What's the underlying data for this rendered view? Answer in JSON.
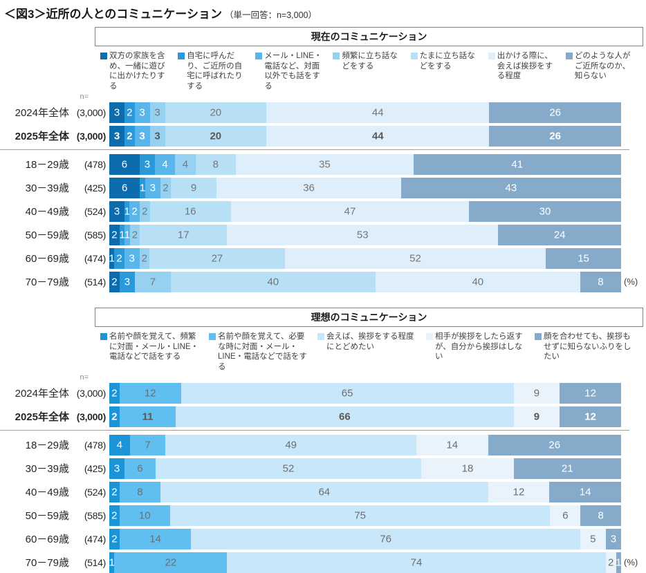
{
  "title": {
    "main": "＜図3＞近所の人とのコミュニケーション",
    "sub": "（単一回答：n=3,000）"
  },
  "n_axis_label": "n=",
  "percent_label": "(%)",
  "chart_data": [
    {
      "type": "bar",
      "stacked": true,
      "orientation": "horizontal",
      "unit": "%",
      "xlim": [
        0,
        100
      ],
      "header": "現在のコミュニケーション",
      "legend_position": "top",
      "categories": [
        "双方の家族を含め、一緒に遊びに出かけたりする",
        "自宅に呼んだり、ご近所の自宅に呼ばれたりする",
        "メール・LINE・電話など、対面以外でも話をする",
        "頻繁に立ち話などをする",
        "たまに立ち話などをする",
        "出かける際に、会えば挨拶をする程度",
        "どのような人がご近所なのか、知らない"
      ],
      "colors": [
        "#0d6cad",
        "#2999da",
        "#5ab6ea",
        "#97d1f2",
        "#b7e0f7",
        "#deeefa",
        "#86abca"
      ],
      "label_colors": [
        "#ffffff",
        "#ffffff",
        "#ffffff",
        "#767676",
        "#767676",
        "#767676",
        "#ffffff"
      ],
      "rows": [
        {
          "label": "2024年全体",
          "n": "(3,000)",
          "bold": false,
          "divider_before": false,
          "values": [
            3,
            2,
            3,
            3,
            20,
            44,
            26
          ]
        },
        {
          "label": "2025年全体",
          "n": "(3,000)",
          "bold": true,
          "divider_before": false,
          "values": [
            3,
            2,
            3,
            3,
            20,
            44,
            26
          ]
        },
        {
          "label": "18－29歳",
          "n": "(478)",
          "bold": false,
          "divider_before": true,
          "values": [
            6,
            3,
            4,
            4,
            8,
            35,
            41
          ]
        },
        {
          "label": "30－39歳",
          "n": "(425)",
          "bold": false,
          "divider_before": false,
          "values": [
            6,
            1,
            3,
            2,
            9,
            36,
            43
          ]
        },
        {
          "label": "40－49歳",
          "n": "(524)",
          "bold": false,
          "divider_before": false,
          "values": [
            3,
            1,
            2,
            2,
            16,
            47,
            30
          ]
        },
        {
          "label": "50－59歳",
          "n": "(585)",
          "bold": false,
          "divider_before": false,
          "values": [
            2,
            1,
            1,
            2,
            17,
            53,
            24
          ]
        },
        {
          "label": "60－69歳",
          "n": "(474)",
          "bold": false,
          "divider_before": false,
          "values": [
            1,
            2,
            3,
            2,
            27,
            52,
            15
          ]
        },
        {
          "label": "70－79歳",
          "n": "(514)",
          "bold": false,
          "divider_before": false,
          "values": [
            2,
            3,
            0,
            7,
            40,
            40,
            8
          ]
        }
      ]
    },
    {
      "type": "bar",
      "stacked": true,
      "orientation": "horizontal",
      "unit": "%",
      "xlim": [
        0,
        100
      ],
      "header": "理想のコミュニケーション",
      "legend_position": "top",
      "categories": [
        "名前や顔を覚えて、頻繁に対面・メール・LINE・電話などで話をする",
        "名前や顔を覚えて、必要な時に対面・メール・LINE・電話などで話をする",
        "会えば、挨拶をする程度にとどめたい",
        "相手が挨拶をしたら返すが、自分から挨拶はしない",
        "顔を合わせても、挨拶もせずに知らないふりをしたい"
      ],
      "colors": [
        "#1b94d8",
        "#61bef0",
        "#c8e7fa",
        "#e8f3fc",
        "#86abca"
      ],
      "label_colors": [
        "#ffffff",
        "#6e6e6e",
        "#6e6e6e",
        "#6e6e6e",
        "#ffffff"
      ],
      "rows": [
        {
          "label": "2024年全体",
          "n": "(3,000)",
          "bold": false,
          "divider_before": false,
          "values": [
            2,
            12,
            65,
            9,
            12
          ]
        },
        {
          "label": "2025年全体",
          "n": "(3,000)",
          "bold": true,
          "divider_before": false,
          "values": [
            2,
            11,
            66,
            9,
            12
          ]
        },
        {
          "label": "18－29歳",
          "n": "(478)",
          "bold": false,
          "divider_before": true,
          "values": [
            4,
            7,
            49,
            14,
            26
          ]
        },
        {
          "label": "30－39歳",
          "n": "(425)",
          "bold": false,
          "divider_before": false,
          "values": [
            3,
            6,
            52,
            18,
            21
          ]
        },
        {
          "label": "40－49歳",
          "n": "(524)",
          "bold": false,
          "divider_before": false,
          "values": [
            2,
            8,
            64,
            12,
            14
          ]
        },
        {
          "label": "50－59歳",
          "n": "(585)",
          "bold": false,
          "divider_before": false,
          "values": [
            2,
            10,
            75,
            6,
            8
          ]
        },
        {
          "label": "60－69歳",
          "n": "(474)",
          "bold": false,
          "divider_before": false,
          "values": [
            2,
            14,
            76,
            5,
            3
          ]
        },
        {
          "label": "70－79歳",
          "n": "(514)",
          "bold": false,
          "divider_before": false,
          "values": [
            1,
            22,
            74,
            2,
            1
          ]
        }
      ]
    }
  ]
}
